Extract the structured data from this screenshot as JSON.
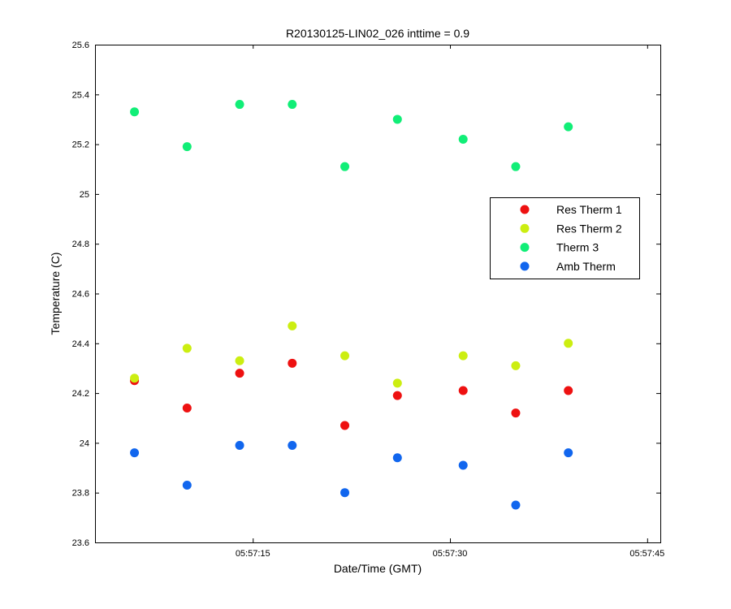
{
  "chart_data": {
    "type": "scatter",
    "title": "R20130125-LIN02_026 inttime = 0.9",
    "xlabel": "Date/Time (GMT)",
    "ylabel": "Temperature (C)",
    "xlim": [
      "05:57:03",
      "05:57:46"
    ],
    "ylim": [
      23.6,
      25.6
    ],
    "x_ticks": [
      "05:57:15",
      "05:57:30",
      "05:57:45"
    ],
    "y_ticks": [
      "23.6",
      "23.8",
      "24",
      "24.2",
      "24.4",
      "24.6",
      "24.8",
      "25",
      "25.2",
      "25.4",
      "25.6"
    ],
    "grid": false,
    "legend_position": "right",
    "x": [
      "05:57:06",
      "05:57:10",
      "05:57:14",
      "05:57:18",
      "05:57:22",
      "05:57:26",
      "05:57:31",
      "05:57:35",
      "05:57:39"
    ],
    "series": [
      {
        "name": "Res Therm 1",
        "color": "#ee1111",
        "values": [
          24.25,
          24.14,
          24.28,
          24.32,
          24.07,
          24.19,
          24.21,
          24.12,
          24.21
        ]
      },
      {
        "name": "Res Therm 2",
        "color": "#ccee11",
        "values": [
          24.26,
          24.38,
          24.33,
          24.47,
          24.35,
          24.24,
          24.35,
          24.31,
          24.4
        ]
      },
      {
        "name": "Therm 3",
        "color": "#11ee77",
        "values": [
          25.33,
          25.19,
          25.36,
          25.36,
          25.11,
          25.3,
          25.22,
          25.11,
          25.27
        ]
      },
      {
        "name": "Amb Therm",
        "color": "#1166ee",
        "values": [
          23.96,
          23.83,
          23.99,
          23.99,
          23.8,
          23.94,
          23.91,
          23.75,
          23.96
        ]
      }
    ]
  }
}
